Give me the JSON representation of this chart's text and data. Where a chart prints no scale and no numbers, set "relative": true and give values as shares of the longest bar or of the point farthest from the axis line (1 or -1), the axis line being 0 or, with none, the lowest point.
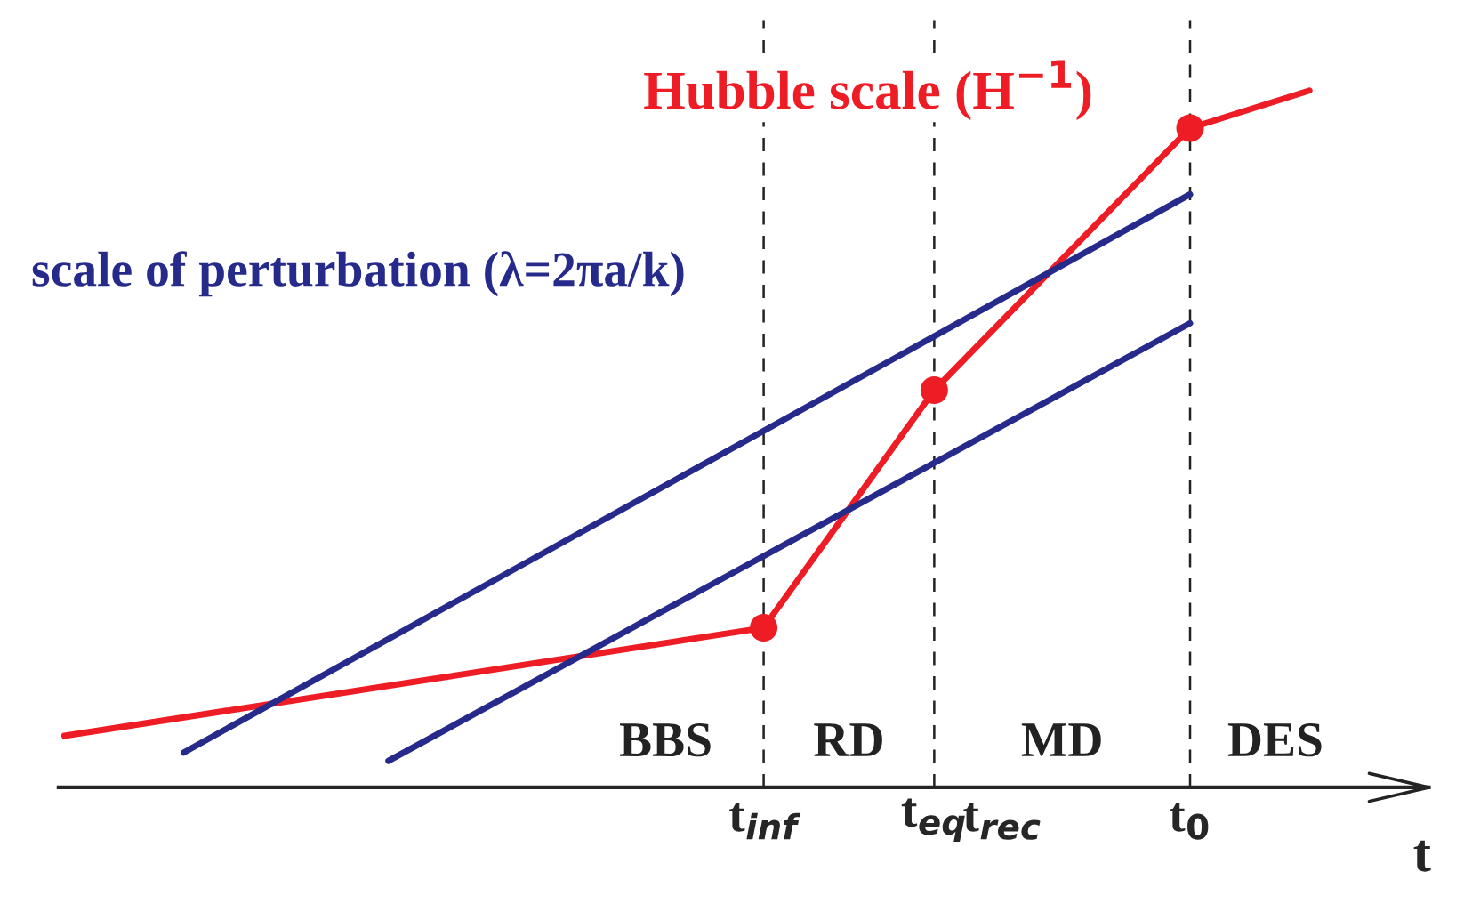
{
  "chart_data": {
    "type": "line",
    "relative": true,
    "xlabel": "t",
    "categories": [
      null,
      null,
      null,
      null,
      null,
      null,
      null,
      null,
      null,
      null,
      null,
      null,
      null,
      null,
      null,
      null,
      null,
      null,
      null,
      null,
      null,
      null,
      null,
      null,
      null,
      null,
      null,
      null,
      null,
      null,
      null,
      null,
      null,
      null,
      null,
      null,
      null,
      null,
      null,
      null,
      null,
      "t$_{inf}$",
      null,
      null,
      null,
      null,
      null,
      null,
      null,
      null,
      null,
      "t$_{eq}$",
      null,
      null,
      null,
      "t$_{rec}$",
      null,
      null,
      null,
      null,
      null,
      null,
      null,
      null,
      null,
      null,
      "t$_{0}$",
      null,
      null,
      null,
      null,
      null,
      null,
      null,
      null,
      null,
      null,
      null,
      null,
      null,
      null
    ],
    "series": [
      {
        "name": "Hubble scale (H$^{−1}$)",
        "color": "#ee1c24",
        "values": [
          0.074,
          null,
          null,
          null,
          null,
          null,
          null,
          null,
          null,
          null,
          null,
          null,
          null,
          null,
          null,
          null,
          null,
          null,
          null,
          null,
          null,
          null,
          null,
          null,
          null,
          null,
          null,
          null,
          null,
          null,
          null,
          null,
          null,
          null,
          null,
          null,
          null,
          null,
          null,
          null,
          null,
          0.229,
          null,
          null,
          null,
          null,
          null,
          null,
          null,
          null,
          null,
          0.57,
          null,
          null,
          null,
          null,
          null,
          null,
          null,
          null,
          null,
          null,
          null,
          null,
          null,
          null,
          0.946,
          null,
          null,
          null,
          null,
          null,
          null,
          1,
          null,
          null,
          null,
          null,
          null,
          null,
          null
        ]
      },
      {
        "type": "scatter",
        "color": "#ee1c24",
        "values": [
          null,
          null,
          null,
          null,
          null,
          null,
          null,
          null,
          null,
          null,
          null,
          null,
          null,
          null,
          null,
          null,
          null,
          null,
          null,
          null,
          null,
          null,
          null,
          null,
          null,
          null,
          null,
          null,
          null,
          null,
          null,
          null,
          null,
          null,
          null,
          null,
          null,
          null,
          null,
          null,
          null,
          0.229,
          null,
          null,
          null,
          null,
          null,
          null,
          null,
          null,
          null,
          0.57,
          null,
          null,
          null,
          null,
          null,
          null,
          null,
          null,
          null,
          null,
          null,
          null,
          null,
          null,
          0.946,
          null,
          null,
          null,
          null,
          null,
          null,
          null,
          null,
          null,
          null,
          null,
          null,
          null,
          null
        ]
      },
      {
        "name": "scale of perturbation (λ=2πa/k)",
        "color": "#262a8a",
        "values": [
          null,
          null,
          null,
          null,
          null,
          null,
          null,
          0.05,
          null,
          null,
          null,
          null,
          null,
          null,
          null,
          null,
          null,
          null,
          null,
          null,
          null,
          null,
          null,
          null,
          null,
          null,
          null,
          null,
          null,
          null,
          null,
          null,
          null,
          null,
          null,
          null,
          null,
          null,
          null,
          null,
          null,
          null,
          null,
          null,
          null,
          null,
          null,
          null,
          null,
          null,
          null,
          null,
          null,
          null,
          null,
          null,
          null,
          null,
          null,
          null,
          null,
          null,
          null,
          null,
          null,
          null,
          0.851,
          null,
          null,
          null,
          null,
          null,
          null,
          null,
          null,
          null,
          null,
          null,
          null,
          null,
          null
        ]
      },
      {
        "color": "#262a8a",
        "values": [
          null,
          null,
          null,
          null,
          null,
          null,
          null,
          null,
          null,
          null,
          null,
          null,
          null,
          null,
          null,
          null,
          null,
          null,
          null,
          0.038,
          null,
          null,
          null,
          null,
          null,
          null,
          null,
          null,
          null,
          null,
          null,
          null,
          null,
          null,
          null,
          null,
          null,
          null,
          null,
          null,
          null,
          null,
          null,
          null,
          null,
          null,
          null,
          null,
          null,
          null,
          null,
          null,
          null,
          null,
          null,
          null,
          null,
          null,
          null,
          null,
          null,
          null,
          null,
          null,
          null,
          null,
          0.666,
          null,
          null,
          null,
          null,
          null,
          null,
          null,
          null,
          null,
          null,
          null,
          null,
          null,
          null
        ]
      }
    ],
    "ref_lines": [
      {
        "axis": "x",
        "value": "t$_{inf}$",
        "line_style": "dashed"
      },
      {
        "axis": "x",
        "value": "t$_{eq}$",
        "line_style": "dashed"
      },
      {
        "axis": "x",
        "value": "t$_{0}$",
        "line_style": "dashed"
      }
    ],
    "annotations": [
      "BBS",
      "RD",
      "MD",
      "DES"
    ],
    "legend": false
  }
}
